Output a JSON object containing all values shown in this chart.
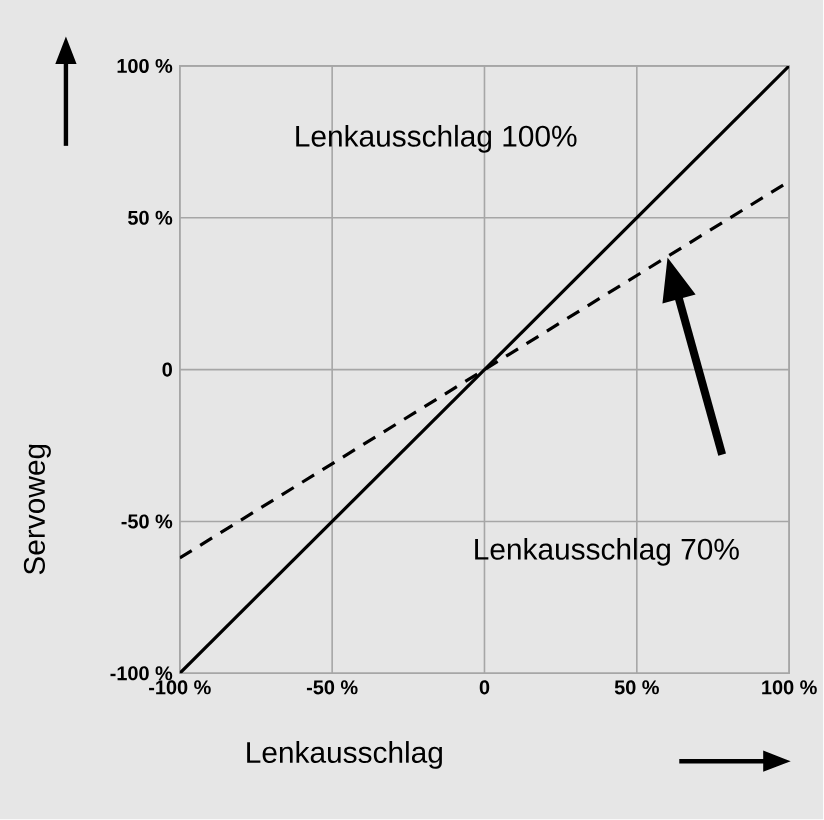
{
  "chart_data": {
    "type": "line",
    "xlabel": "Lenkausschlag",
    "ylabel": "Servoweg",
    "x": [
      -100,
      100
    ],
    "series": [
      {
        "name": "Lenkausschlag 100%",
        "color": "#000000",
        "values": [
          -100,
          100
        ],
        "line_style": "solid"
      },
      {
        "color": "#000000",
        "values": [
          -62,
          62
        ],
        "line_style": "dashed"
      }
    ],
    "annotations": [
      "Lenkausschlag 70%"
    ],
    "xlim": [
      -100,
      100
    ],
    "ylim": [
      -100,
      100
    ],
    "xticks": [
      {
        "value": -100,
        "label": "-100 %"
      },
      {
        "value": -50,
        "label": "-50 %"
      },
      {
        "value": 0,
        "label": "0"
      },
      {
        "value": 50,
        "label": "50 %"
      },
      {
        "value": 100,
        "label": "100 %"
      }
    ],
    "yticks": [
      {
        "value": -100,
        "label": "-100 %"
      },
      {
        "value": -50,
        "label": "-50 %"
      },
      {
        "value": 0,
        "label": "0"
      },
      {
        "value": 50,
        "label": "50 %"
      },
      {
        "value": 100,
        "label": "100 %"
      }
    ],
    "grid": true,
    "legend": false,
    "marker": "none"
  }
}
